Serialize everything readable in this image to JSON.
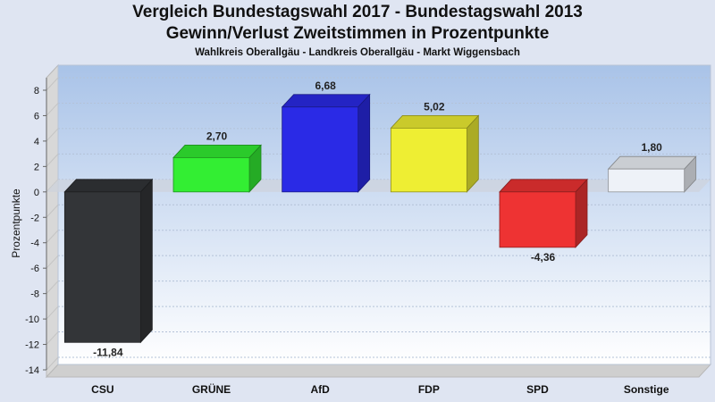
{
  "chart_data": {
    "type": "bar",
    "title": "Vergleich Bundestagswahl 2017 - Bundestagswahl 2013",
    "subtitle": "Gewinn/Verlust Zweitstimmen in Prozentpunkte",
    "caption": "Wahlkreis Oberallgäu - Landkreis Oberallgäu - Markt Wiggensbach",
    "xlabel": "",
    "ylabel": "Prozentpunkte",
    "ylim": [
      -14,
      9
    ],
    "yticks": [
      8,
      6,
      4,
      2,
      0,
      -2,
      -4,
      -6,
      -8,
      -10,
      -12,
      -14
    ],
    "grid": true,
    "categories": [
      "CSU",
      "GRÜNE",
      "AfD",
      "FDP",
      "SPD",
      "Sonstige"
    ],
    "values": [
      -11.84,
      2.7,
      6.68,
      5.02,
      -4.36,
      1.8
    ],
    "value_labels": [
      "-11,84",
      "2,70",
      "6,68",
      "5,02",
      "-4,36",
      "1,80"
    ],
    "colors": [
      "#333538",
      "#33ee33",
      "#2a2ae6",
      "#eeee33",
      "#ee3333",
      "#eef2f8"
    ]
  }
}
